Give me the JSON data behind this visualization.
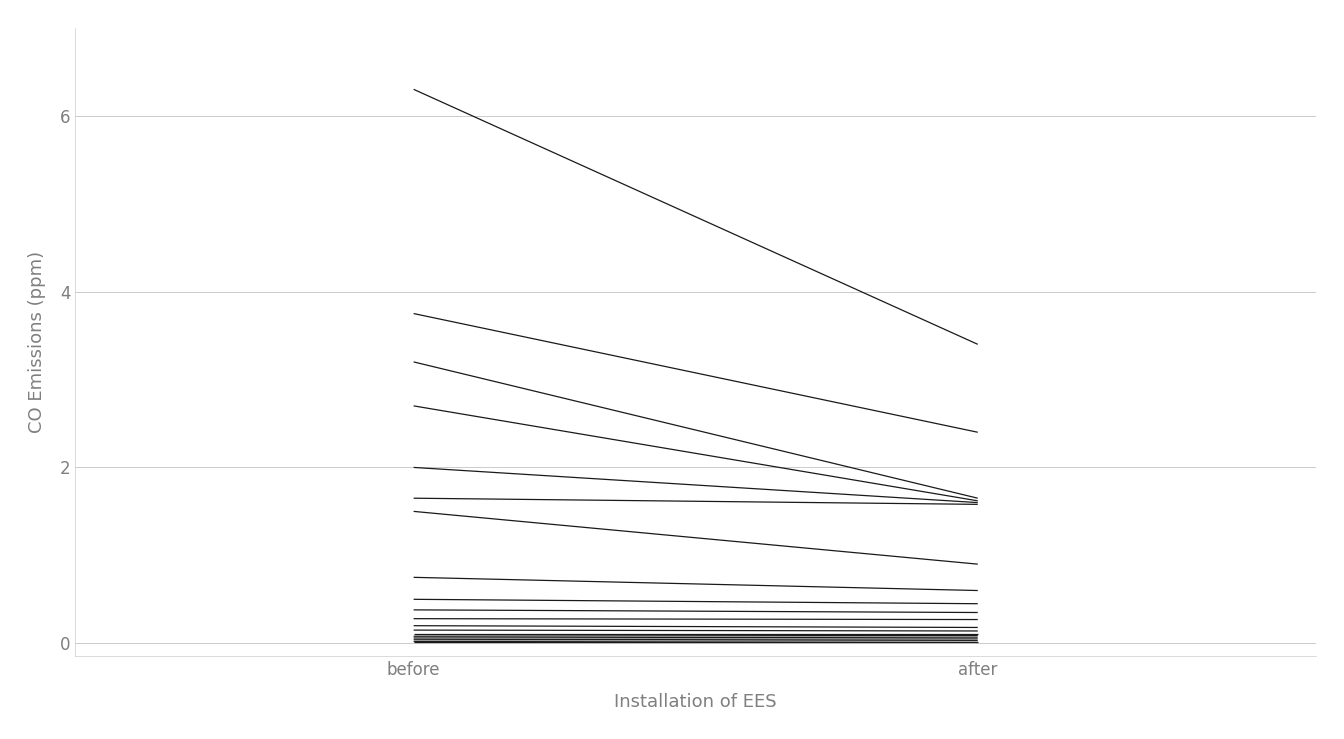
{
  "vehicles": [
    {
      "before": 6.3,
      "after": 3.4
    },
    {
      "before": 3.75,
      "after": 2.4
    },
    {
      "before": 3.2,
      "after": 1.65
    },
    {
      "before": 2.7,
      "after": 1.62
    },
    {
      "before": 2.0,
      "after": 1.6
    },
    {
      "before": 1.65,
      "after": 1.58
    },
    {
      "before": 1.5,
      "after": 0.9
    },
    {
      "before": 0.75,
      "after": 0.6
    },
    {
      "before": 0.5,
      "after": 0.45
    },
    {
      "before": 0.38,
      "after": 0.35
    },
    {
      "before": 0.28,
      "after": 0.27
    },
    {
      "before": 0.2,
      "after": 0.18
    },
    {
      "before": 0.15,
      "after": 0.14
    },
    {
      "before": 0.11,
      "after": 0.11
    },
    {
      "before": 0.08,
      "after": 0.09
    },
    {
      "before": 0.06,
      "after": 0.07
    },
    {
      "before": 0.04,
      "after": 0.05
    },
    {
      "before": 0.02,
      "after": 0.03
    },
    {
      "before": 0.01,
      "after": 0.01
    }
  ],
  "x_labels": [
    "before",
    "after"
  ],
  "xlabel": "Installation of EES",
  "ylabel": "CO Emissions (ppm)",
  "yticks": [
    0,
    2,
    4,
    6
  ],
  "ylim": [
    -0.15,
    7.0
  ],
  "xlim": [
    -0.6,
    1.6
  ],
  "line_color": "#1a1a1a",
  "line_width": 0.9,
  "bg_color": "#ffffff",
  "panel_bg": "#ffffff",
  "grid_color": "#cccccc",
  "axis_label_color": "#7f7f7f",
  "tick_label_color": "#7f7f7f",
  "axis_label_fontsize": 13,
  "tick_fontsize": 12,
  "spine_color": "#cccccc"
}
